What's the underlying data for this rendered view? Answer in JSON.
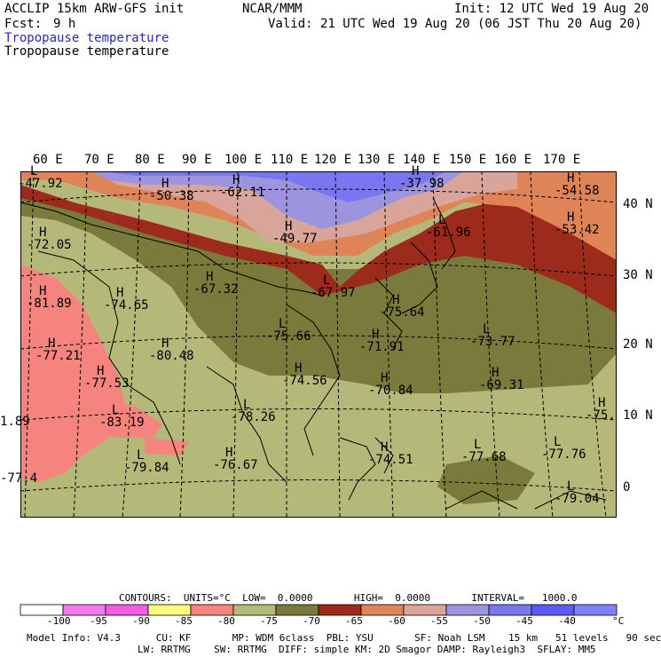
{
  "header": {
    "model_name": "ACCLIP 15km ARW-GFS init",
    "org": "NCAR/MMM",
    "init": "Init: 12 UTC Wed 19 Aug 20",
    "fcst_label": "Fcst:",
    "fcst_value": "9 h",
    "valid": "Valid: 21 UTC Wed 19 Aug 20 (06 JST Thu 20 Aug 20)",
    "field_title_1": "Tropopause temperature",
    "field_title_2": "Tropopause temperature"
  },
  "map": {
    "lon_labels": [
      "60 E",
      "70 E",
      "80 E",
      "90 E",
      "100 E",
      "110 E",
      "120 E",
      "130 E",
      "140 E",
      "150 E",
      "160 E",
      "170 E"
    ],
    "lat_labels": [
      "40 N",
      "30 N",
      "20 N",
      "10 N",
      "0"
    ],
    "highs_lows": [
      {
        "mark": "L",
        "value": "-47.92"
      },
      {
        "mark": "H",
        "value": "-50.38"
      },
      {
        "mark": "H",
        "value": "-62.11"
      },
      {
        "mark": "H",
        "value": "-37.98"
      },
      {
        "mark": "H",
        "value": "-54.58"
      },
      {
        "mark": "H",
        "value": "-49.77"
      },
      {
        "mark": "H",
        "value": "-53.42"
      },
      {
        "mark": "L",
        "value": "-61.96"
      },
      {
        "mark": "H",
        "value": "-72.05"
      },
      {
        "mark": "H",
        "value": "-67.32"
      },
      {
        "mark": "L",
        "value": "-67.97"
      },
      {
        "mark": "H",
        "value": "-81.89"
      },
      {
        "mark": "H",
        "value": "-74.65"
      },
      {
        "mark": "H",
        "value": "-75.64"
      },
      {
        "mark": "L",
        "value": "-75.66"
      },
      {
        "mark": "L",
        "value": "-73.77"
      },
      {
        "mark": "H",
        "value": "-77.21"
      },
      {
        "mark": "H",
        "value": "-80.48"
      },
      {
        "mark": "H",
        "value": "-71.91"
      },
      {
        "mark": "H",
        "value": "-74.56"
      },
      {
        "mark": "H",
        "value": "-77.53"
      },
      {
        "mark": "H",
        "value": "-70.84"
      },
      {
        "mark": "H",
        "value": "-69.31"
      },
      {
        "mark": "L",
        "value": "-83.19"
      },
      {
        "mark": "H",
        "value": "-75."
      },
      {
        "mark": "",
        "value": "1.89"
      },
      {
        "mark": "L",
        "value": "-78.26"
      },
      {
        "mark": "H",
        "value": "-74.51"
      },
      {
        "mark": "L",
        "value": "-77.68"
      },
      {
        "mark": "L",
        "value": "-77.76"
      },
      {
        "mark": "",
        "value": "-77.4"
      },
      {
        "mark": "L",
        "value": "-79.84"
      },
      {
        "mark": "H",
        "value": "-76.67"
      },
      {
        "mark": "L",
        "value": "-79.04"
      }
    ],
    "colors": {
      "ocean_zone": "#b4b97a",
      "olive": "#797a3c",
      "darkred": "#9c2b1c",
      "orange": "#de8458",
      "pink": "#d9a59a",
      "lavender": "#9c94de",
      "blue": "#7a76f0",
      "salmon": "#f5847e",
      "magenta": "#f55ce6",
      "yellow": "#fafa7c"
    }
  },
  "contours": {
    "line": "CONTOURS:  UNITS=°C  LOW=  0.0000       HIGH=  0.0000       INTERVAL=   1000.0"
  },
  "colorbar": {
    "colors": [
      "#ffffff",
      "#f57af0",
      "#f55ce6",
      "#fafa7c",
      "#f5847e",
      "#b4b97a",
      "#797a3c",
      "#9c2b1c",
      "#de8458",
      "#d9a59a",
      "#9c94de",
      "#7a76f0",
      "#5c5cf5",
      "#8080ff"
    ],
    "ticks": [
      "-100",
      "-95",
      "-90",
      "-85",
      "-80",
      "-75",
      "-70",
      "-65",
      "-60",
      "-55",
      "-50",
      "-45",
      "-40"
    ],
    "unit": "°C"
  },
  "footer": {
    "line1": "Model Info: V4.3      CU: KF       MP: WDM 6class  PBL: YSU       SF: Noah LSM    15 km   51 levels   90 sec",
    "line2": "LW: RRTMG    SW: RRTMG  DIFF: simple KM: 2D Smagor DAMP: Rayleigh3  SFLAY: MM5"
  }
}
